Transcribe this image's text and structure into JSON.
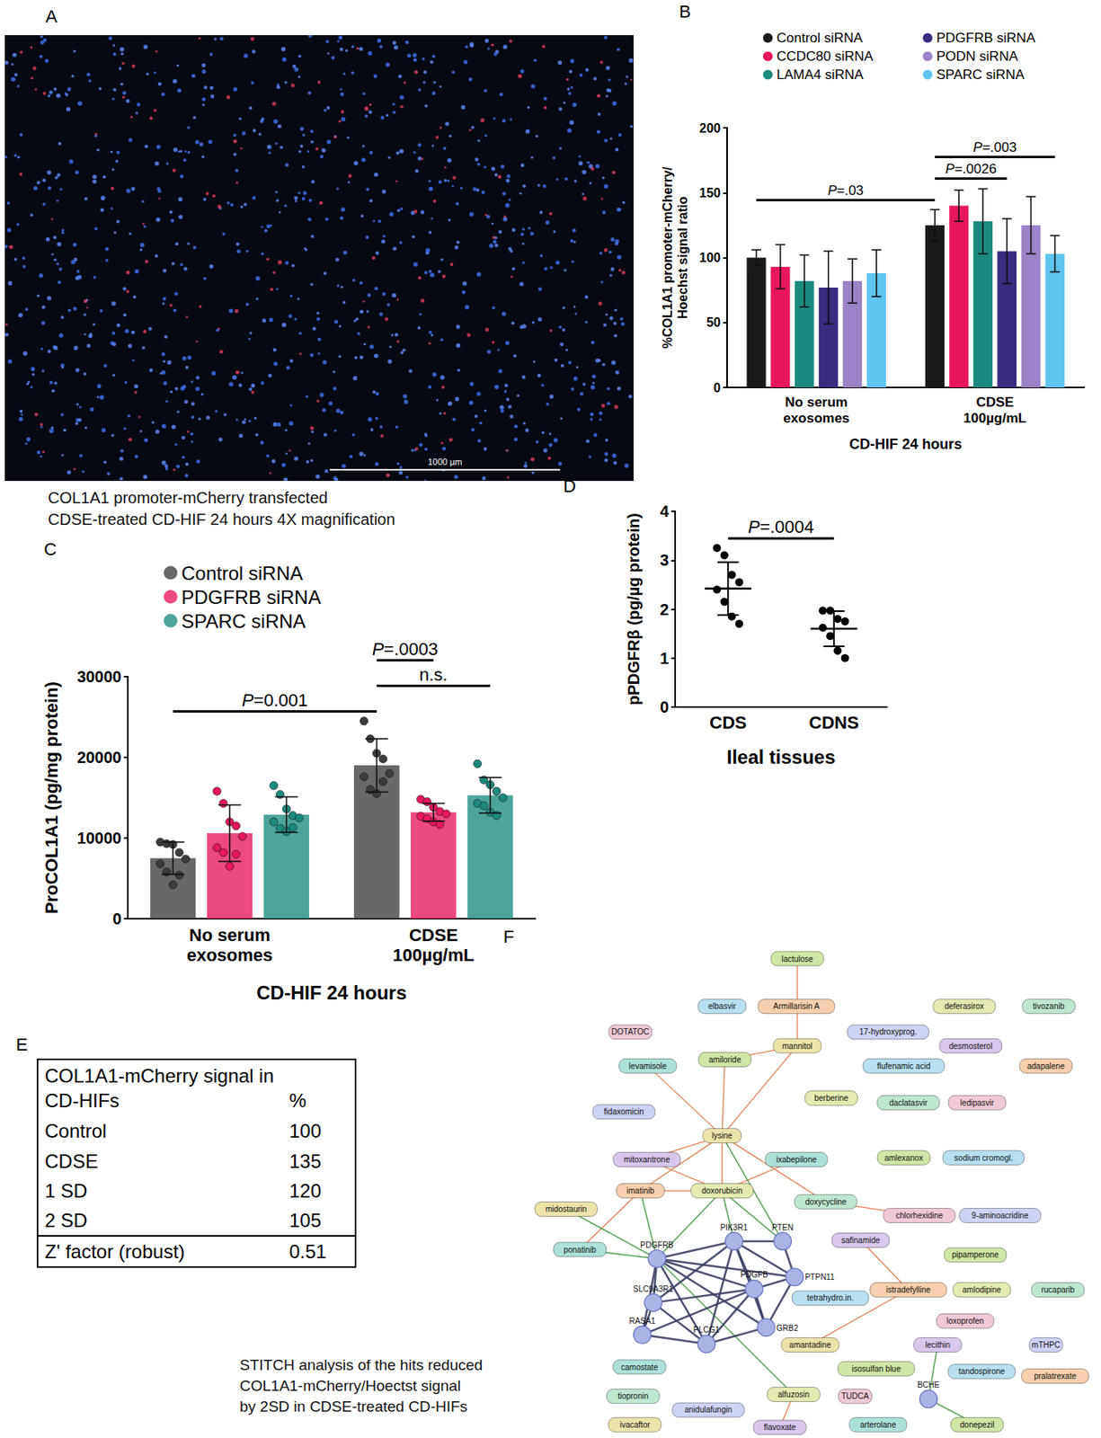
{
  "chart_data": [
    {
      "panel": "B",
      "type": "bar",
      "categories": [
        "No serum exosomes",
        "CDSE 100µg/mL"
      ],
      "x_label": "CD-HIF 24 hours",
      "y_label": "%COL1A1 promoter-mCherry/ Hoechst signal ratio",
      "ylim": [
        0,
        200
      ],
      "yticks": [
        0,
        50,
        100,
        150,
        200
      ],
      "grid": false,
      "legend": "top",
      "series": [
        {
          "name": "Control siRNA",
          "color": "#1a1a1a",
          "values": [
            100,
            125
          ],
          "errors": [
            6,
            12
          ]
        },
        {
          "name": "CCDC80 siRNA",
          "color": "#e8175d",
          "values": [
            93,
            140
          ],
          "errors": [
            17,
            12
          ]
        },
        {
          "name": "LAMA4 siRNA",
          "color": "#1b8a7e",
          "values": [
            82,
            128
          ],
          "errors": [
            20,
            25
          ]
        },
        {
          "name": "PDGFRB siRNA",
          "color": "#3a2a80",
          "values": [
            77,
            105
          ],
          "errors": [
            28,
            25
          ]
        },
        {
          "name": "PODN siRNA",
          "color": "#9c82c8",
          "values": [
            82,
            125
          ],
          "errors": [
            17,
            22
          ]
        },
        {
          "name": "SPARC siRNA",
          "color": "#5ec4f0",
          "values": [
            88,
            103
          ],
          "errors": [
            18,
            14
          ]
        }
      ],
      "annotations": [
        {
          "text": "P=.03",
          "from": [
            0,
            0
          ],
          "to": [
            1,
            0
          ]
        },
        {
          "text": "P=.0026",
          "from": [
            1,
            0
          ],
          "to": [
            1,
            3
          ]
        },
        {
          "text": "P=.003",
          "from": [
            1,
            0
          ],
          "to": [
            1,
            5
          ]
        }
      ]
    },
    {
      "panel": "C",
      "type": "bar",
      "categories": [
        "No serum exosomes",
        "CDSE 100µg/mL"
      ],
      "x_label": "CD-HIF 24 hours",
      "y_label": "ProCOL1A1 (pg/mg protein)",
      "ylim": [
        0,
        30000
      ],
      "yticks": [
        0,
        10000,
        20000,
        30000
      ],
      "grid": false,
      "legend": "top",
      "series": [
        {
          "name": "Control siRNA",
          "color": "#3d3d3d",
          "values": [
            7500,
            19000
          ],
          "errors": [
            2000,
            3300
          ],
          "points": [
            [
              9500,
              9300,
              9200,
              8200,
              7400,
              6800,
              5800,
              4200,
              5400
            ],
            [
              24500,
              22300,
              20500,
              19800,
              18000,
              17600,
              16000,
              15500,
              17000
            ]
          ]
        },
        {
          "name": "PDGFRB siRNA",
          "color": "#e8175d",
          "values": [
            10600,
            13200
          ],
          "errors": [
            3500,
            1100
          ],
          "points": [
            [
              15800,
              14300,
              12000,
              11500,
              10200,
              8800,
              8200,
              6500,
              8000
            ],
            [
              14800,
              14500,
              13800,
              13300,
              13000,
              12700,
              12400,
              12000,
              11700
            ]
          ]
        },
        {
          "name": "SPARC siRNA",
          "color": "#1b8a7e",
          "values": [
            12900,
            15300
          ],
          "errors": [
            2200,
            2200
          ],
          "points": [
            [
              16500,
              15400,
              13600,
              12800,
              12500,
              12000,
              11200,
              10800,
              11300
            ],
            [
              19200,
              17200,
              16600,
              15800,
              15000,
              14300,
              14000,
              13200,
              12800
            ]
          ]
        }
      ],
      "annotations": [
        {
          "text": "P=0.001",
          "from": [
            0,
            0
          ],
          "to": [
            1,
            0
          ]
        },
        {
          "text": "n.s.",
          "from": [
            1,
            0
          ],
          "to": [
            1,
            2
          ]
        },
        {
          "text": "P=.0003",
          "from": [
            1,
            0
          ],
          "to": [
            1,
            1
          ]
        }
      ]
    },
    {
      "panel": "D",
      "type": "scatter",
      "categories": [
        "CDS",
        "CDNS"
      ],
      "x_label": "Ileal tissues",
      "y_label": "pPDGFRβ (pg/µg protein)",
      "ylim": [
        0,
        4
      ],
      "yticks": [
        0,
        1,
        2,
        3,
        4
      ],
      "grid": false,
      "color": "#000000",
      "points": [
        [
          3.25,
          3.1,
          2.7,
          2.55,
          2.4,
          2.15,
          1.85,
          1.7
        ],
        [
          1.97,
          1.97,
          1.8,
          1.75,
          1.62,
          1.45,
          1.15,
          1.0
        ]
      ],
      "means": [
        2.42,
        1.6
      ],
      "errors": [
        0.54,
        0.36
      ],
      "annotations": [
        {
          "text": "P=.0004",
          "from": [
            0
          ],
          "to": [
            1
          ]
        }
      ]
    }
  ],
  "image": {
    "panel": "A",
    "scale_bar": "1000 µm",
    "caption": [
      "COL1A1 promoter-mCherry transfected",
      "CDSE-treated CD-HIF 24 hours 4X magnification"
    ]
  },
  "table": {
    "panel": "E",
    "header": [
      "COL1A1-mCherry signal in CD-HIFs",
      "%"
    ],
    "rows": [
      [
        "Control",
        100
      ],
      [
        "CDSE",
        135
      ],
      [
        "1 SD",
        120
      ],
      [
        "2 SD",
        105
      ],
      [
        "Z' factor (robust)",
        0.51
      ]
    ]
  },
  "network": {
    "panel": "F",
    "caption": [
      "STITCH analysis of the hits reduced",
      "COL1A1-mCherry/Hoectst signal",
      "by 2SD in CDSE-treated CD-HIFs"
    ],
    "nodes": [
      {
        "label": "lactulose",
        "kind": "chemical"
      },
      {
        "label": "elbasvir",
        "kind": "chemical"
      },
      {
        "label": "Armillarisin A",
        "kind": "chemical"
      },
      {
        "label": "deferasirox",
        "kind": "chemical"
      },
      {
        "label": "tivozanib",
        "kind": "chemical"
      },
      {
        "label": "DOTATOC",
        "kind": "chemical"
      },
      {
        "label": "17-hydroxyprog.",
        "kind": "chemical"
      },
      {
        "label": "mannitol",
        "kind": "chemical"
      },
      {
        "label": "desmosterol",
        "kind": "chemical"
      },
      {
        "label": "levamisole",
        "kind": "chemical"
      },
      {
        "label": "amiloride",
        "kind": "chemical"
      },
      {
        "label": "flufenamic acid",
        "kind": "chemical"
      },
      {
        "label": "adapalene",
        "kind": "chemical"
      },
      {
        "label": "berberine",
        "kind": "chemical"
      },
      {
        "label": "daclatasvir",
        "kind": "chemical"
      },
      {
        "label": "ledipasvir",
        "kind": "chemical"
      },
      {
        "label": "fidaxomicin",
        "kind": "chemical"
      },
      {
        "label": "lysine",
        "kind": "chemical"
      },
      {
        "label": "mitoxantrone",
        "kind": "chemical"
      },
      {
        "label": "ixabepilone",
        "kind": "chemical"
      },
      {
        "label": "amlexanox",
        "kind": "chemical"
      },
      {
        "label": "sodium cromogl.",
        "kind": "chemical"
      },
      {
        "label": "imatinib",
        "kind": "chemical"
      },
      {
        "label": "doxorubicin",
        "kind": "chemical"
      },
      {
        "label": "doxycycline",
        "kind": "chemical"
      },
      {
        "label": "chlorhexidine",
        "kind": "chemical"
      },
      {
        "label": "9-aminoacridine",
        "kind": "chemical"
      },
      {
        "label": "midostaurin",
        "kind": "chemical"
      },
      {
        "label": "PIK3R1",
        "kind": "protein"
      },
      {
        "label": "PTEN",
        "kind": "protein"
      },
      {
        "label": "safinamide",
        "kind": "chemical"
      },
      {
        "label": "ponatinib",
        "kind": "chemical"
      },
      {
        "label": "PDGFRB",
        "kind": "protein"
      },
      {
        "label": "pipamperone",
        "kind": "chemical"
      },
      {
        "label": "PTPN11",
        "kind": "protein"
      },
      {
        "label": "PDGFB",
        "kind": "protein"
      },
      {
        "label": "tetrahydro.in.",
        "kind": "chemical"
      },
      {
        "label": "istradefylline",
        "kind": "chemical"
      },
      {
        "label": "amlodipine",
        "kind": "chemical"
      },
      {
        "label": "rucaparib",
        "kind": "chemical"
      },
      {
        "label": "SLC9A3R1",
        "kind": "protein"
      },
      {
        "label": "loxoprofen",
        "kind": "chemical"
      },
      {
        "label": "mTHPC",
        "kind": "chemical"
      },
      {
        "label": "GRB2",
        "kind": "protein"
      },
      {
        "label": "RASA1",
        "kind": "protein"
      },
      {
        "label": "PLCG1",
        "kind": "protein"
      },
      {
        "label": "amantadine",
        "kind": "chemical"
      },
      {
        "label": "lecithin",
        "kind": "chemical"
      },
      {
        "label": "camostate",
        "kind": "chemical"
      },
      {
        "label": "isosulfan blue",
        "kind": "chemical"
      },
      {
        "label": "tandospirone",
        "kind": "chemical"
      },
      {
        "label": "pralatrexate",
        "kind": "chemical"
      },
      {
        "label": "alfuzosin",
        "kind": "chemical"
      },
      {
        "label": "tiopronin",
        "kind": "chemical"
      },
      {
        "label": "TUDCA",
        "kind": "chemical"
      },
      {
        "label": "BCHE",
        "kind": "protein"
      },
      {
        "label": "anidulafungin",
        "kind": "chemical"
      },
      {
        "label": "ivacaftor",
        "kind": "chemical"
      },
      {
        "label": "flavoxate",
        "kind": "chemical"
      },
      {
        "label": "arterolane",
        "kind": "chemical"
      },
      {
        "label": "donepezil",
        "kind": "chemical"
      }
    ],
    "edges": [
      [
        "lactulose",
        "mannitol"
      ],
      [
        "mannitol",
        "amiloride"
      ],
      [
        "mannitol",
        "lysine"
      ],
      [
        "levamisole",
        "lysine"
      ],
      [
        "amiloride",
        "lysine"
      ],
      [
        "lysine",
        "mitoxantrone"
      ],
      [
        "lysine",
        "doxorubicin"
      ],
      [
        "lysine",
        "doxycycline"
      ],
      [
        "lysine",
        "imatinib"
      ],
      [
        "mitoxantrone",
        "doxorubicin"
      ],
      [
        "imatinib",
        "ponatinib"
      ],
      [
        "imatinib",
        "doxorubicin"
      ],
      [
        "ixabepilone",
        "doxorubicin"
      ],
      [
        "doxycycline",
        "chlorhexidine"
      ],
      [
        "safinamide",
        "istradefylline"
      ],
      [
        "istradefylline",
        "amantadine"
      ],
      [
        "alfuzosin",
        "flavoxate"
      ],
      [
        "imatinib",
        "PDGFRB"
      ],
      [
        "midostaurin",
        "PDGFRB"
      ],
      [
        "ponatinib",
        "PDGFRB"
      ],
      [
        "doxorubicin",
        "PDGFRB"
      ],
      [
        "doxorubicin",
        "PIK3R1"
      ],
      [
        "doxorubicin",
        "PTEN"
      ],
      [
        "lysine",
        "PTEN"
      ],
      [
        "PDGFRB",
        "alfuzosin"
      ],
      [
        "lecithin",
        "BCHE"
      ],
      [
        "BCHE",
        "donepezil"
      ],
      [
        "PDGFRB",
        "PIK3R1"
      ],
      [
        "PDGFRB",
        "PTPN11"
      ],
      [
        "PDGFRB",
        "PDGFB"
      ],
      [
        "PDGFRB",
        "GRB2"
      ],
      [
        "PDGFRB",
        "RASA1"
      ],
      [
        "PDGFRB",
        "PLCG1"
      ],
      [
        "PDGFRB",
        "SLC9A3R1"
      ],
      [
        "PIK3R1",
        "PTEN"
      ],
      [
        "PIK3R1",
        "PDGFB"
      ],
      [
        "PIK3R1",
        "GRB2"
      ],
      [
        "PIK3R1",
        "PTPN11"
      ],
      [
        "PIK3R1",
        "PLCG1"
      ],
      [
        "PIK3R1",
        "SLC9A3R1"
      ],
      [
        "PTPN11",
        "GRB2"
      ],
      [
        "PTPN11",
        "PDGFB"
      ],
      [
        "PDGFB",
        "GRB2"
      ],
      [
        "PDGFB",
        "RASA1"
      ],
      [
        "PDGFB",
        "PLCG1"
      ],
      [
        "PDGFB",
        "SLC9A3R1"
      ],
      [
        "GRB2",
        "PLCG1"
      ],
      [
        "RASA1",
        "PLCG1"
      ],
      [
        "RASA1",
        "SLC9A3R1"
      ],
      [
        "SLC9A3R1",
        "PLCG1"
      ],
      [
        "PTEN",
        "PTPN11"
      ]
    ]
  }
}
